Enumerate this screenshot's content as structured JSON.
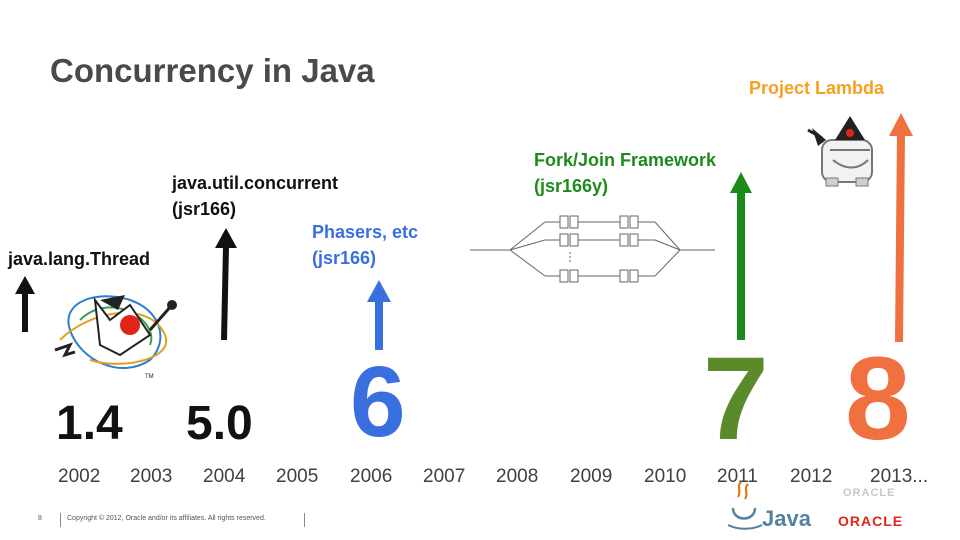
{
  "slide": {
    "title": "Concurrency in Java",
    "labels": {
      "thread": "java.lang.Thread",
      "util_concurrent_l1": "java.util.concurrent",
      "util_concurrent_l2": "(jsr166)",
      "phasers_l1": "Phasers, etc",
      "phasers_l2": "(jsr166)",
      "forkjoin_l1": "Fork/Join Framework",
      "forkjoin_l2": "(jsr166y)",
      "lambda": "Project Lambda"
    },
    "versions": [
      "1.4",
      "5.0",
      "6",
      "7",
      "8"
    ],
    "years": [
      "2002",
      "2003",
      "2004",
      "2005",
      "2006",
      "2007",
      "2008",
      "2009",
      "2010",
      "2011",
      "2012",
      "2013..."
    ],
    "footer": {
      "page": "8",
      "copyright": "Copyright © 2012, Oracle and/or its affiliates. All rights reserved."
    },
    "logos": {
      "java": "Java",
      "oracle": "ORACLE",
      "oracle_small": "ORACLE"
    },
    "colors": {
      "title": "#4a4a4a",
      "black": "#111111",
      "blue": "#3a6fe0",
      "green": "#5a8a2a",
      "green_arrow": "#1a8a1a",
      "orange": "#f07040",
      "orange_label": "#f5a020",
      "forkjoin_label": "#1e8a1e",
      "oracle_red": "#e2231a"
    }
  }
}
